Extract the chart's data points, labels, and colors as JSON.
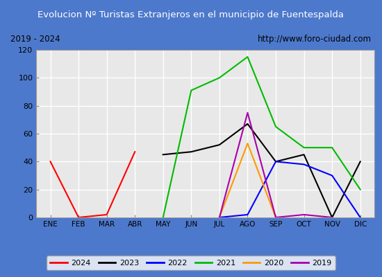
{
  "title": "Evolucion Nº Turistas Extranjeros en el municipio de Fuentespalda",
  "subtitle_left": "2019 - 2024",
  "subtitle_right": "http://www.foro-ciudad.com",
  "months": [
    "ENE",
    "FEB",
    "MAR",
    "ABR",
    "MAY",
    "JUN",
    "JUL",
    "AGO",
    "SEP",
    "OCT",
    "NOV",
    "DIC"
  ],
  "ylim": [
    0,
    120
  ],
  "yticks": [
    0,
    20,
    40,
    60,
    80,
    100,
    120
  ],
  "title_bg": "#4d79cc",
  "title_color": "#ffffff",
  "plot_bg": "#e8e8e8",
  "grid_color": "#ffffff",
  "outer_bg": "#4d79cc",
  "subtitle_bg": "#d8d8d8",
  "subtitle_border": "#4d79cc",
  "legend_border": "#4d79cc",
  "series": {
    "2024": {
      "color": "#ff0000",
      "indices": [
        0,
        1,
        2,
        3
      ],
      "values": [
        40,
        0,
        2,
        47
      ]
    },
    "2023": {
      "color": "#000000",
      "indices": [
        4,
        5,
        6,
        7,
        8,
        9,
        10,
        11
      ],
      "values": [
        45,
        47,
        52,
        67,
        40,
        45,
        0,
        40
      ]
    },
    "2022": {
      "color": "#0000ff",
      "indices": [
        6,
        7,
        8,
        9,
        10,
        11
      ],
      "values": [
        0,
        2,
        40,
        38,
        30,
        0
      ]
    },
    "2021": {
      "color": "#00bb00",
      "indices": [
        4,
        5,
        6,
        7,
        8,
        9,
        10,
        11
      ],
      "values": [
        0,
        91,
        100,
        115,
        65,
        50,
        50,
        20
      ]
    },
    "2020": {
      "color": "#ff9900",
      "indices": [
        6,
        7,
        8
      ],
      "values": [
        0,
        53,
        0
      ]
    },
    "2019": {
      "color": "#aa00aa",
      "indices": [
        6,
        7,
        8,
        9,
        10
      ],
      "values": [
        0,
        75,
        0,
        2,
        0
      ]
    }
  },
  "legend_order": [
    "2024",
    "2023",
    "2022",
    "2021",
    "2020",
    "2019"
  ]
}
